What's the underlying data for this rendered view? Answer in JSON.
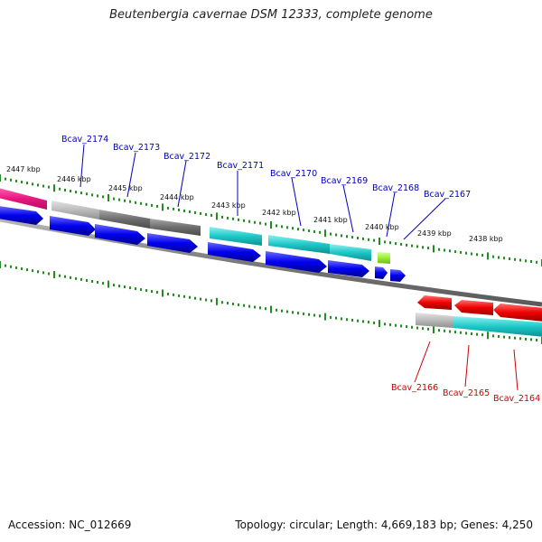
{
  "title": "Beutenbergia cavernae DSM 12333, complete genome",
  "accession": "Accession: NC_012669",
  "topology": "Topology: circular; Length: 4,669,183 bp; Genes: 4,250",
  "ticks": [
    {
      "label": "2447 kbp"
    },
    {
      "label": "2446 kbp"
    },
    {
      "label": "2445 kbp"
    },
    {
      "label": "2444 kbp"
    },
    {
      "label": "2443 kbp"
    },
    {
      "label": "2442 kbp"
    },
    {
      "label": "2441 kbp"
    },
    {
      "label": "2440 kbp"
    },
    {
      "label": "2439 kbp"
    },
    {
      "label": "2438 kbp"
    }
  ],
  "genes_top": [
    {
      "label": "Bcav_2174",
      "color": "#0000bb"
    },
    {
      "label": "Bcav_2173",
      "color": "#0000bb"
    },
    {
      "label": "Bcav_2172",
      "color": "#0000bb"
    },
    {
      "label": "Bcav_2171",
      "color": "#0000bb"
    },
    {
      "label": "Bcav_2170",
      "color": "#0000bb"
    },
    {
      "label": "Bcav_2169",
      "color": "#0000bb"
    },
    {
      "label": "Bcav_2168",
      "color": "#0000bb"
    },
    {
      "label": "Bcav_2167",
      "color": "#0000bb"
    }
  ],
  "genes_bottom": [
    {
      "label": "Bcav_2166",
      "color": "#cc0000"
    },
    {
      "label": "Bcav_2165",
      "color": "#cc0000"
    },
    {
      "label": "Bcav_2164",
      "color": "#cc0000"
    }
  ],
  "colors": {
    "tick": "#228b22",
    "backbone": "#888888",
    "cds_forward": "#0000ee",
    "cds_reverse": "#ee0000",
    "magenta": "#e8177f",
    "light_gray": "#bbbbbb",
    "dark_gray": "#6e6e6e",
    "cyan": "#1ec8c8",
    "lime": "#99ee33"
  }
}
